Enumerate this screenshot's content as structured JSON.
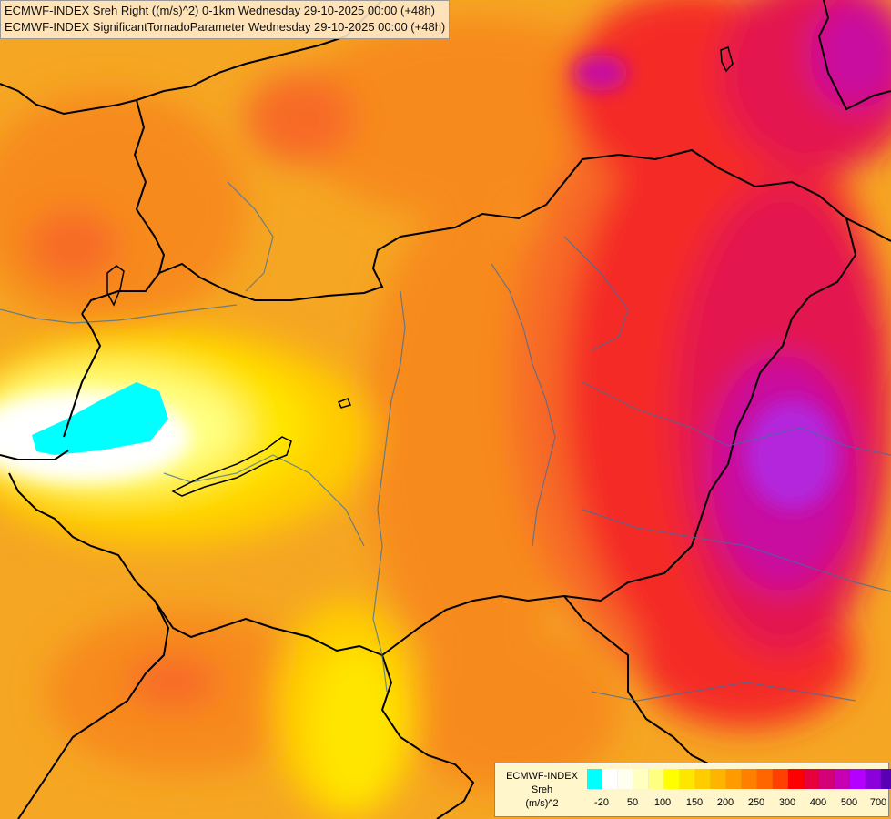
{
  "header": {
    "line1": "ECMWF-INDEX Sreh Right ((m/s)^2) 0-1km Wednesday 29-10-2025 00:00 (+48h)",
    "line2": "ECMWF-INDEX SignificantTornadoParameter Wednesday 29-10-2025 00:00 (+48h)"
  },
  "legend": {
    "title_line1": "ECMWF-INDEX",
    "title_line2": "Sreh",
    "title_line3": "(m/s)^2",
    "colors": [
      "#00ffff",
      "#ffffff",
      "#fffff0",
      "#ffffc0",
      "#ffff80",
      "#ffff00",
      "#ffe600",
      "#ffcc00",
      "#ffb400",
      "#ff9a00",
      "#ff8000",
      "#ff6600",
      "#ff4000",
      "#ff0000",
      "#e6003c",
      "#d40078",
      "#c800b4",
      "#b400ff",
      "#8c00dc",
      "#5a00b4",
      "#28008c",
      "#000080"
    ],
    "ticks": [
      "-20",
      "50",
      "100",
      "150",
      "200",
      "250",
      "300",
      "400",
      "500",
      "700"
    ]
  },
  "map": {
    "field_colors": {
      "base": "#f5a623",
      "orange": "#f78a1e",
      "orange_red": "#f76a28",
      "red": "#f42a28",
      "crimson": "#e31450",
      "magenta": "#c80aa0",
      "purple": "#b428dc",
      "yellow": "#ffe600",
      "light_yellow": "#ffff80",
      "white": "#ffffff",
      "cyan": "#00ffff"
    }
  }
}
